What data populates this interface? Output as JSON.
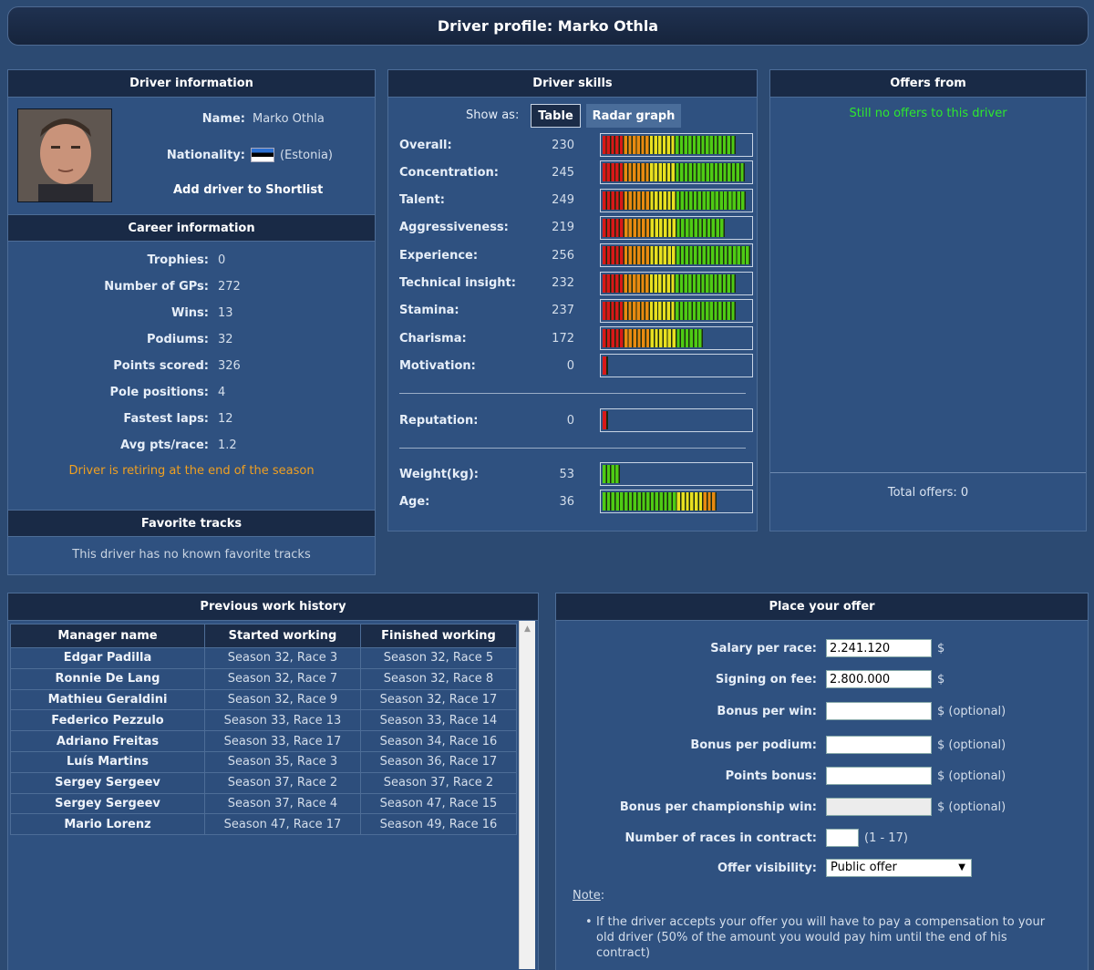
{
  "title": "Driver profile: Marko Othla",
  "driver_info": {
    "heading": "Driver information",
    "name_label": "Name:",
    "name_value": "Marko Othla",
    "nationality_label": "Nationality:",
    "nationality_value": "(Estonia)",
    "shortlist_link": "Add driver to Shortlist"
  },
  "career": {
    "heading": "Career information",
    "rows": [
      {
        "label": "Trophies:",
        "value": "0"
      },
      {
        "label": "Number of GPs:",
        "value": "272"
      },
      {
        "label": "Wins:",
        "value": "13"
      },
      {
        "label": "Podiums:",
        "value": "32"
      },
      {
        "label": "Points scored:",
        "value": "326"
      },
      {
        "label": "Pole positions:",
        "value": "4"
      },
      {
        "label": "Fastest laps:",
        "value": "12"
      },
      {
        "label": "Avg pts/race:",
        "value": "1.2"
      }
    ],
    "retiring_note": "Driver is retiring at the end of the season"
  },
  "favorite_tracks": {
    "heading": "Favorite tracks",
    "empty_text": "This driver has no known favorite tracks"
  },
  "skills": {
    "heading": "Driver skills",
    "show_as_label": "Show as:",
    "tab_table": "Table",
    "tab_radar": "Radar graph",
    "rows": [
      {
        "label": "Overall:",
        "value": "230",
        "fill": 0.9
      },
      {
        "label": "Concentration:",
        "value": "245",
        "fill": 0.96
      },
      {
        "label": "Talent:",
        "value": "249",
        "fill": 0.97
      },
      {
        "label": "Aggressiveness:",
        "value": "219",
        "fill": 0.83
      },
      {
        "label": "Experience:",
        "value": "256",
        "fill": 1.0
      },
      {
        "label": "Technical insight:",
        "value": "232",
        "fill": 0.9
      },
      {
        "label": "Stamina:",
        "value": "237",
        "fill": 0.9
      },
      {
        "label": "Charisma:",
        "value": "172",
        "fill": 0.68
      },
      {
        "label": "Motivation:",
        "value": "0",
        "fill": 0.04
      }
    ],
    "reputation": {
      "label": "Reputation:",
      "value": "0",
      "fill": 0.04
    },
    "weight": {
      "label": "Weight(kg):",
      "value": "53",
      "fill": 0.12
    },
    "age": {
      "label": "Age:",
      "value": "36",
      "fill": 0.77
    }
  },
  "offers": {
    "heading": "Offers from",
    "empty_text": "Still no offers to this driver",
    "total_text": "Total offers: 0"
  },
  "history": {
    "heading": "Previous work history",
    "columns": [
      "Manager name",
      "Started working",
      "Finished working"
    ],
    "rows": [
      [
        "Edgar Padilla",
        "Season 32, Race 3",
        "Season 32, Race 5"
      ],
      [
        "Ronnie De Lang",
        "Season 32, Race 7",
        "Season 32, Race 8"
      ],
      [
        "Mathieu Geraldini",
        "Season 32, Race 9",
        "Season 32, Race 17"
      ],
      [
        "Federico Pezzulo",
        "Season 33, Race 13",
        "Season 33, Race 14"
      ],
      [
        "Adriano Freitas",
        "Season 33, Race 17",
        "Season 34, Race 16"
      ],
      [
        "Luís Martins",
        "Season 35, Race 3",
        "Season 36, Race 17"
      ],
      [
        "Sergey Sergeev",
        "Season 37, Race 2",
        "Season 37, Race 2"
      ],
      [
        "Sergey Sergeev",
        "Season 37, Race 4",
        "Season 47, Race 15"
      ],
      [
        "Mario Lorenz",
        "Season 47, Race 17",
        "Season 49, Race 16"
      ]
    ],
    "scroll_up": "▲"
  },
  "offer_form": {
    "heading": "Place your offer",
    "salary_label": "Salary per race:",
    "salary_value": "2.241.120",
    "signing_label": "Signing on fee:",
    "signing_value": "2.800.000",
    "bonus_win_label": "Bonus per win:",
    "bonus_podium_label": "Bonus per podium:",
    "points_bonus_label": "Points bonus:",
    "bonus_champ_label": "Bonus per championship win:",
    "races_label": "Number of races in contract:",
    "races_range": "(1 - 17)",
    "visibility_label": "Offer visibility:",
    "visibility_value": "Public offer",
    "currency": "$",
    "optional": "$ (optional)",
    "note_label": "Note",
    "note_colon": ":",
    "note_text": "If the driver accepts your offer you will have to pay a compensation to your old driver (50% of the amount you would pay him until the end of his contract)"
  },
  "colors": {
    "bar_red": "#d81818",
    "bar_orange": "#e88a10",
    "bar_yellow": "#e8e020",
    "bar_green": "#4ecb14",
    "offer_green": "#2ee82e",
    "retire_orange": "#f0a020"
  }
}
